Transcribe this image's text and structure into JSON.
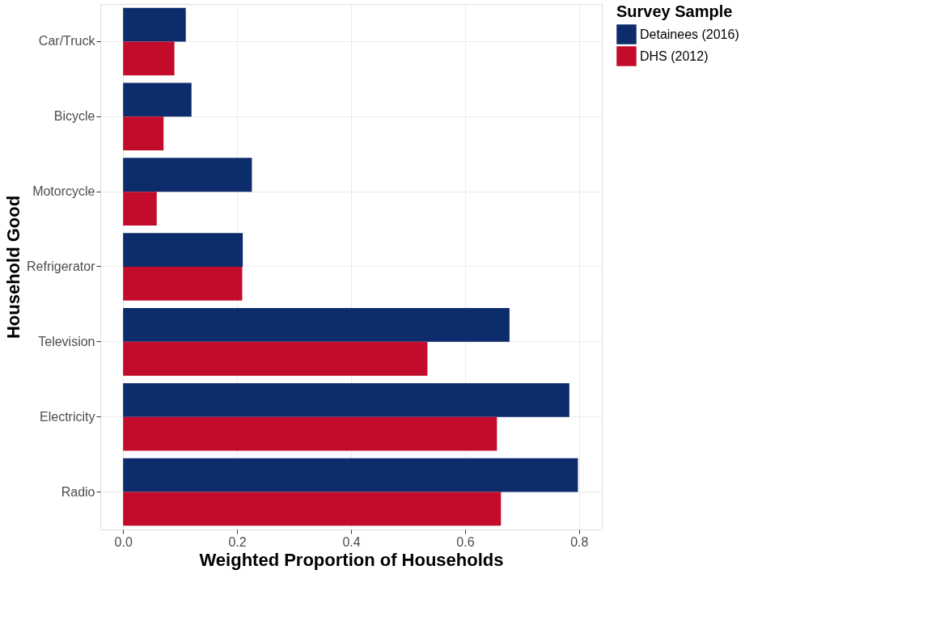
{
  "chart_data": {
    "type": "bar",
    "orientation": "horizontal",
    "xlabel": "Weighted Proportion of Households",
    "ylabel": "Household Good",
    "legend_title": "Survey Sample",
    "legend": "right",
    "grid": true,
    "categories": [
      "Car/Truck",
      "Bicycle",
      "Motorcycle",
      "Refrigerator",
      "Television",
      "Electricity",
      "Radio"
    ],
    "xlim": [
      -0.04,
      0.84
    ],
    "xticks": [
      {
        "value": 0,
        "label": "0.0"
      },
      0.2,
      0.4,
      0.6,
      0.8
    ],
    "series": [
      {
        "name": "Detainees (2016)",
        "color": "#0d2c6c",
        "values": [
          0.11,
          0.12,
          0.226,
          0.21,
          0.678,
          0.783,
          0.798
        ]
      },
      {
        "name": "DHS (2012)",
        "color": "#c30b2b",
        "values": [
          0.09,
          0.071,
          0.059,
          0.209,
          0.534,
          0.656,
          0.663
        ]
      }
    ]
  }
}
